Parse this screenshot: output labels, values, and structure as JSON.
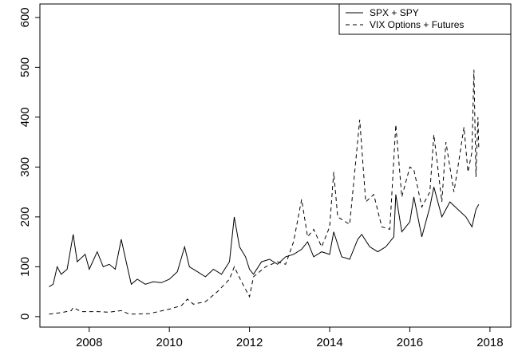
{
  "chart_data": {
    "type": "line",
    "xlim": [
      2006.77,
      2018.52
    ],
    "xticks": [
      2008,
      2010,
      2012,
      2014,
      2016,
      2018
    ],
    "ylim": [
      -21,
      627
    ],
    "yticks": [
      0,
      100,
      200,
      300,
      400,
      500,
      600
    ],
    "legend": "top-right",
    "grid": false,
    "series": [
      {
        "name": "SPX + SPY",
        "color": "#000000",
        "dash": "none",
        "x": [
          2007.0,
          2007.1,
          2007.2,
          2007.3,
          2007.45,
          2007.6,
          2007.7,
          2007.9,
          2008.0,
          2008.2,
          2008.35,
          2008.5,
          2008.65,
          2008.8,
          2008.95,
          2009.05,
          2009.2,
          2009.4,
          2009.6,
          2009.8,
          2010.0,
          2010.2,
          2010.38,
          2010.5,
          2010.7,
          2010.9,
          2011.1,
          2011.3,
          2011.5,
          2011.62,
          2011.75,
          2011.9,
          2012.0,
          2012.1,
          2012.3,
          2012.5,
          2012.7,
          2012.9,
          2013.1,
          2013.3,
          2013.45,
          2013.6,
          2013.8,
          2014.0,
          2014.1,
          2014.3,
          2014.5,
          2014.7,
          2014.8,
          2015.0,
          2015.2,
          2015.4,
          2015.6,
          2015.65,
          2015.8,
          2016.0,
          2016.1,
          2016.3,
          2016.5,
          2016.6,
          2016.8,
          2017.0,
          2017.2,
          2017.4,
          2017.55,
          2017.65,
          2017.72
        ],
        "values": [
          60,
          65,
          100,
          85,
          95,
          165,
          110,
          125,
          95,
          130,
          100,
          105,
          95,
          155,
          100,
          65,
          75,
          65,
          70,
          68,
          75,
          90,
          140,
          100,
          90,
          80,
          95,
          85,
          110,
          200,
          140,
          120,
          95,
          85,
          110,
          115,
          105,
          120,
          125,
          135,
          150,
          120,
          130,
          125,
          170,
          120,
          115,
          155,
          165,
          140,
          130,
          140,
          160,
          245,
          170,
          190,
          240,
          160,
          220,
          260,
          200,
          230,
          215,
          200,
          180,
          215,
          225
        ]
      },
      {
        "name": "VIX Options + Futures",
        "color": "#000000",
        "dash": "5,4",
        "x": [
          2007.0,
          2007.3,
          2007.55,
          2007.6,
          2007.8,
          2008.2,
          2008.5,
          2008.8,
          2009.0,
          2009.5,
          2010.0,
          2010.3,
          2010.45,
          2010.6,
          2010.9,
          2011.2,
          2011.5,
          2011.62,
          2011.8,
          2012.0,
          2012.1,
          2012.4,
          2012.7,
          2012.9,
          2013.1,
          2013.3,
          2013.45,
          2013.6,
          2013.8,
          2014.0,
          2014.1,
          2014.2,
          2014.5,
          2014.75,
          2014.9,
          2015.1,
          2015.3,
          2015.5,
          2015.65,
          2015.8,
          2016.0,
          2016.1,
          2016.3,
          2016.5,
          2016.6,
          2016.8,
          2016.9,
          2017.1,
          2017.2,
          2017.35,
          2017.45,
          2017.55,
          2017.6,
          2017.65,
          2017.7,
          2017.72
        ],
        "values": [
          5,
          8,
          12,
          18,
          10,
          10,
          9,
          12,
          5,
          6,
          15,
          22,
          35,
          25,
          30,
          50,
          75,
          100,
          70,
          40,
          80,
          100,
          110,
          105,
          150,
          235,
          160,
          175,
          140,
          180,
          290,
          200,
          185,
          395,
          230,
          245,
          180,
          175,
          385,
          240,
          300,
          295,
          220,
          250,
          365,
          230,
          350,
          250,
          300,
          380,
          290,
          330,
          495,
          280,
          400,
          340
        ]
      }
    ]
  }
}
